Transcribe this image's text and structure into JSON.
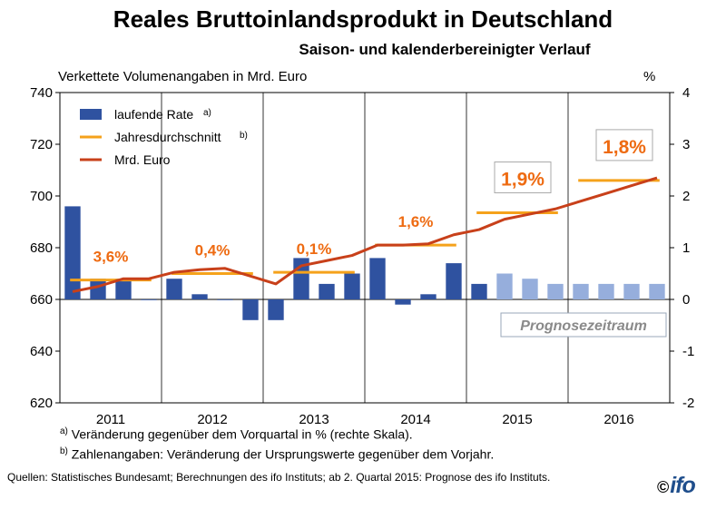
{
  "chart_data": {
    "type": "bar",
    "title": "Reales Bruttoinlandsprodukt in Deutschland",
    "subtitle": "Saison- und kalenderbereinigter Verlauf",
    "ylabel": "Verkettete Volumenangaben in Mrd. Euro",
    "y2label": "%",
    "ylim": [
      620,
      740
    ],
    "y_ticks": [
      "620",
      "640",
      "660",
      "680",
      "700",
      "720",
      "740"
    ],
    "y2lim": [
      -2,
      4
    ],
    "y2_ticks": [
      "-2",
      "-1",
      "0",
      "1",
      "2",
      "3",
      "4"
    ],
    "years": [
      "2011",
      "2012",
      "2013",
      "2014",
      "2015",
      "2016"
    ],
    "quarters_per_year": 4,
    "series": [
      {
        "name": "laufende Rate",
        "legend_sup": "a)",
        "axis": "right",
        "values": [
          1.8,
          0.4,
          0.4,
          0.0,
          0.4,
          0.1,
          0.0,
          -0.4,
          -0.4,
          0.8,
          0.3,
          0.5,
          0.8,
          -0.1,
          0.1,
          0.7,
          0.3,
          0.5,
          0.4,
          0.3,
          0.3,
          0.3,
          0.3,
          0.3
        ],
        "color": "#2f52a0",
        "forecast_color": "#96aedc",
        "forecast_from_index": 17
      },
      {
        "name": "Jahresdurchschnitt",
        "legend_sup": "b)",
        "axis": "left",
        "values": [
          667.5,
          670,
          670.5,
          681,
          693.5,
          706
        ],
        "labels": [
          "3,6%",
          "0,4%",
          "0,1%",
          "1,6%",
          "1,9%",
          "1,8%"
        ],
        "color": "#f5a21b"
      },
      {
        "name": "Mrd. Euro",
        "axis": "left",
        "values": [
          663,
          665,
          668,
          668,
          670.5,
          671.5,
          672,
          669,
          666,
          673,
          675,
          677,
          681,
          681,
          681.5,
          685,
          687,
          691,
          693,
          695,
          698,
          701,
          704,
          707
        ],
        "color": "#c8401a"
      }
    ],
    "forecast_label": "Prognosezeitraum",
    "grid": true,
    "legend": "top-left"
  },
  "notes": {
    "a_mark": "a)",
    "a_text": "Veränderung gegenüber dem Vorquartal in % (rechte Skala).",
    "b_mark": "b)",
    "b_text": "Zahlenangaben: Veränderung der Ursprungswerte gegenüber dem Vorjahr.",
    "sources": "Quellen: Statistisches Bundesamt; Berechnungen des ifo Instituts; ab 2. Quartal 2015: Prognose des ifo Instituts."
  },
  "logo": {
    "copyright": "©",
    "text": "ifo"
  },
  "colors": {
    "bar": "#2f52a0",
    "forecast_bar": "#96aedc",
    "avg": "#f5a21b",
    "line": "#c8401a",
    "label": "#ee6b12"
  }
}
